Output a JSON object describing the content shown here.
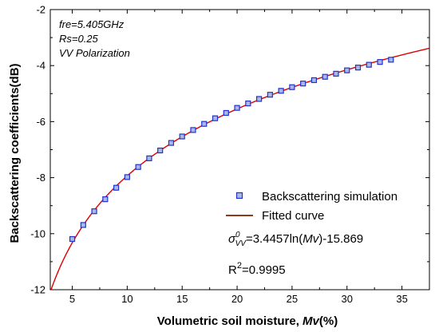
{
  "chart_data": {
    "type": "scatter",
    "xlabel_main": "Volumetric soil moisture, ",
    "xlabel_var": "Mv",
    "xlabel_unit": "(%)",
    "ylabel": "Backscattering coefficients(dB)",
    "xlim": [
      3,
      37.5
    ],
    "ylim": [
      -12,
      -2
    ],
    "xticks": [
      5,
      10,
      15,
      20,
      25,
      30,
      35
    ],
    "yticks": [
      -12,
      -10,
      -8,
      -6,
      -4,
      -2
    ],
    "annotations": [
      "fre=5.405GHz",
      "Rs=0.25",
      "VV Polarization"
    ],
    "grid": false,
    "legend_placement": "lower-right",
    "series": [
      {
        "name": "Backscattering simulation",
        "kind": "markers",
        "color": "#2233cc",
        "fill": "#a9b7e8",
        "x": [
          5,
          6,
          7,
          8,
          9,
          10,
          11,
          12,
          13,
          14,
          15,
          16,
          17,
          18,
          19,
          20,
          21,
          22,
          23,
          24,
          25,
          26,
          27,
          28,
          29,
          30,
          31,
          32,
          33,
          34
        ],
        "y": [
          -10.19,
          -9.69,
          -9.2,
          -8.77,
          -8.36,
          -7.98,
          -7.62,
          -7.31,
          -7.03,
          -6.76,
          -6.53,
          -6.3,
          -6.08,
          -5.88,
          -5.69,
          -5.51,
          -5.35,
          -5.19,
          -5.04,
          -4.9,
          -4.77,
          -4.64,
          -4.52,
          -4.4,
          -4.29,
          -4.17,
          -4.07,
          -3.97,
          -3.87,
          -3.79
        ]
      },
      {
        "name": "Fitted curve",
        "kind": "line",
        "color": "#dd0000",
        "legend_color": "#8b3a1a",
        "equation": {
          "a": 3.4457,
          "b": -15.869
        }
      }
    ],
    "equation_parts": {
      "sigma": "σ",
      "sup": "0",
      "sub": "VV",
      "pre": "=3.4457ln(",
      "var": "Mv",
      "post": ")-15.869"
    },
    "r2_base": "R",
    "r2_sup": "2",
    "r2_value": "=0.9995"
  }
}
